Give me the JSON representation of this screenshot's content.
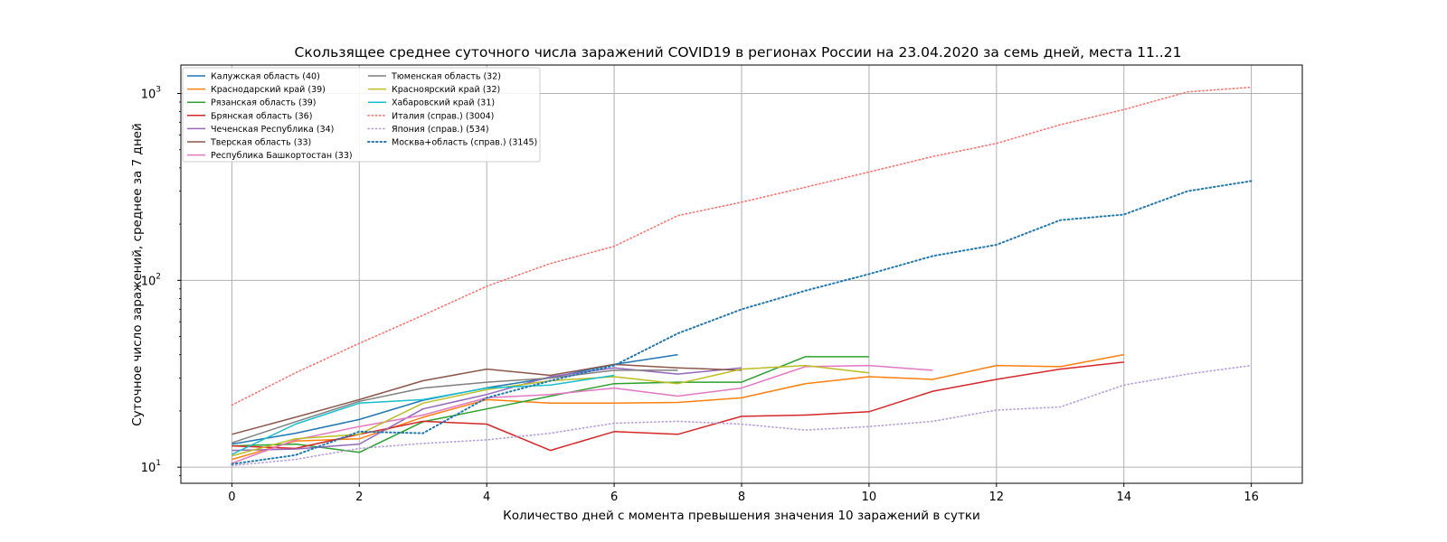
{
  "chart_data": {
    "type": "line",
    "title": "Скользящее среднее суточного числа заражений COVID19 в регионах России на 23.04.2020 за семь дней, места 11..21",
    "xlabel": "Количество дней с момента превышения значения 10 заражений в сутки",
    "ylabel": "Суточное число заражений, среднее за 7 дней",
    "yscale": "log",
    "xlim": [
      -0.8,
      16.8
    ],
    "ylim": [
      8.2,
      1420
    ],
    "xticks": [
      0,
      2,
      4,
      6,
      8,
      10,
      12,
      14,
      16
    ],
    "xtick_labels": [
      "0",
      "2",
      "4",
      "6",
      "8",
      "10",
      "12",
      "14",
      "16"
    ],
    "yticks": [
      10,
      100,
      1000
    ],
    "ytick_labels": [
      {
        "base": "10",
        "exp": "1"
      },
      {
        "base": "10",
        "exp": "2"
      },
      {
        "base": "10",
        "exp": "3"
      }
    ],
    "grid": true,
    "legend_position": "top-left",
    "series": [
      {
        "name": "Калужская область (40)",
        "color": "#1f77b4",
        "style": "solid",
        "x": [
          0,
          1,
          2,
          3,
          4,
          5,
          6,
          7
        ],
        "y": [
          13.3,
          15.2,
          18.0,
          22.8,
          26.6,
          30.1,
          35.5,
          40.0
        ]
      },
      {
        "name": "Краснодарский край (39)",
        "color": "#ff7f0e",
        "style": "solid",
        "x": [
          0,
          1,
          2,
          3,
          4,
          5,
          6,
          7,
          8,
          9,
          10,
          11,
          12,
          13,
          14
        ],
        "y": [
          11.0,
          13.8,
          14.2,
          18.5,
          23.0,
          22.0,
          22.0,
          22.2,
          23.5,
          28.0,
          30.5,
          29.5,
          35.0,
          34.5,
          40.0
        ]
      },
      {
        "name": "Рязанская область (39)",
        "color": "#2ca02c",
        "style": "solid",
        "x": [
          0,
          1,
          2,
          3,
          4,
          5,
          6,
          7,
          8,
          9,
          10
        ],
        "y": [
          13.0,
          13.3,
          12.0,
          17.5,
          20.5,
          24.0,
          28.0,
          28.5,
          28.5,
          39.0,
          39.0
        ]
      },
      {
        "name": "Брянская область (36)",
        "color": "#d62728",
        "style": "solid",
        "x": [
          0,
          1,
          2,
          3,
          4,
          5,
          6,
          7,
          8,
          9,
          10,
          11,
          12,
          13,
          14
        ],
        "y": [
          13.0,
          12.6,
          15.0,
          17.6,
          17.0,
          12.3,
          15.5,
          15.0,
          18.7,
          19.0,
          19.8,
          25.5,
          29.5,
          33.5,
          36.5
        ]
      },
      {
        "name": "Чеченская Республика (34)",
        "color": "#9467bd",
        "style": "solid",
        "x": [
          0,
          1,
          2,
          3,
          4,
          5,
          6,
          7,
          8
        ],
        "y": [
          12.3,
          12.5,
          13.3,
          20.5,
          24.5,
          30.5,
          34.0,
          31.5,
          34.0
        ]
      },
      {
        "name": "Тверская область (33)",
        "color": "#8c564b",
        "style": "solid",
        "x": [
          0,
          1,
          2,
          3,
          4,
          5,
          6,
          7,
          8
        ],
        "y": [
          15.0,
          18.5,
          23.0,
          29.0,
          33.5,
          31.0,
          35.5,
          34.0,
          33.0
        ]
      },
      {
        "name": "Республика Башкортостан (33)",
        "color": "#e377c2",
        "style": "solid",
        "x": [
          0,
          1,
          2,
          3,
          4,
          5,
          6,
          7,
          8,
          9,
          10,
          11
        ],
        "y": [
          10.5,
          14.0,
          16.5,
          19.0,
          23.5,
          24.5,
          26.5,
          24.0,
          26.5,
          34.5,
          35.0,
          33.0
        ]
      },
      {
        "name": "Тюменская область (32)",
        "color": "#7f7f7f",
        "style": "solid",
        "x": [
          0,
          1,
          2,
          3,
          4,
          5,
          6,
          7
        ],
        "y": [
          13.5,
          17.5,
          22.5,
          26.5,
          28.5,
          30.0,
          33.0,
          33.0
        ]
      },
      {
        "name": "Красноярский край (32)",
        "color": "#bcbd22",
        "style": "solid",
        "x": [
          0,
          1,
          2,
          3,
          4,
          5,
          6,
          7,
          8,
          9,
          10
        ],
        "y": [
          11.5,
          14.2,
          15.0,
          22.0,
          26.0,
          29.0,
          30.5,
          28.0,
          33.5,
          35.0,
          32.0
        ]
      },
      {
        "name": "Хабаровский край (31)",
        "color": "#17becf",
        "style": "solid",
        "x": [
          0,
          1,
          2,
          3,
          4,
          5,
          6
        ],
        "y": [
          11.7,
          17.0,
          22.0,
          23.0,
          26.5,
          27.5,
          31.0
        ]
      },
      {
        "name": "Италия (справ.) (3004)",
        "color": "#ff6f69",
        "style": "dotted",
        "x": [
          0,
          1,
          2,
          3,
          4,
          5,
          6,
          7,
          8,
          9,
          10,
          11,
          12,
          13,
          14,
          15,
          16
        ],
        "y": [
          21.5,
          32.0,
          46.0,
          65.0,
          93.0,
          123.0,
          152.0,
          222.0,
          262.0,
          315.0,
          380.0,
          460.0,
          540.0,
          680.0,
          820.0,
          1020.0,
          1080.0
        ]
      },
      {
        "name": "Япония (справ.) (534)",
        "color": "#b59ddb",
        "style": "dotted",
        "x": [
          0,
          1,
          2,
          3,
          4,
          5,
          6,
          7,
          8,
          9,
          10,
          11,
          12,
          13,
          14,
          15,
          16
        ],
        "y": [
          10.2,
          11.0,
          12.6,
          13.4,
          14.0,
          15.2,
          17.2,
          17.6,
          17.0,
          15.8,
          16.5,
          17.6,
          20.2,
          21.0,
          27.5,
          31.5,
          35.0
        ]
      },
      {
        "name": "Москва+область (справ.) (3145)",
        "color": "#1f77b4",
        "style": "dotted-bold",
        "x": [
          0,
          1,
          2,
          3,
          4,
          5,
          6,
          7,
          8,
          9,
          10,
          11,
          12,
          13,
          14,
          15,
          16
        ],
        "y": [
          10.4,
          11.6,
          15.5,
          15.2,
          23.5,
          29.0,
          35.0,
          52.0,
          70.0,
          88.0,
          108.0,
          135.0,
          155.0,
          210.0,
          225.0,
          300.0,
          340.0
        ]
      }
    ]
  }
}
